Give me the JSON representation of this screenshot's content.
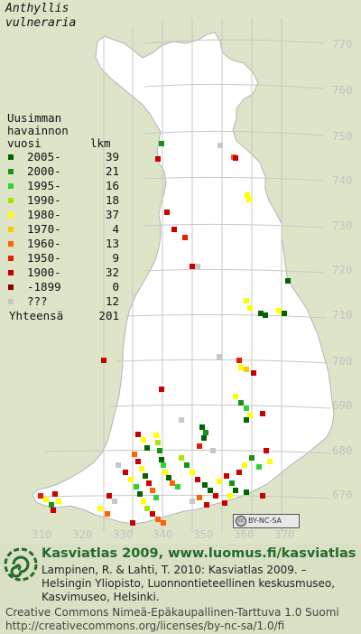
{
  "species": {
    "line1": "Anthyllis",
    "line2": "vulneraria"
  },
  "legend": {
    "header": [
      "Uusimman",
      "havainnon",
      "vuosi"
    ],
    "count_header": "lkm",
    "rows": [
      {
        "label": "2005-",
        "count": "39",
        "color": "#006400"
      },
      {
        "label": "2000-",
        "count": "21",
        "color": "#149614"
      },
      {
        "label": "1995-",
        "count": "16",
        "color": "#32d232"
      },
      {
        "label": "1990-",
        "count": "18",
        "color": "#a8e600"
      },
      {
        "label": "1980-",
        "count": "37",
        "color": "#ffff00"
      },
      {
        "label": "1970-",
        "count": "4",
        "color": "#ffc800"
      },
      {
        "label": "1960-",
        "count": "13",
        "color": "#ff6400"
      },
      {
        "label": "1950-",
        "count": "9",
        "color": "#e61e00"
      },
      {
        "label": "1900-",
        "count": "32",
        "color": "#c80000"
      },
      {
        "label": "-1899",
        "count": "0",
        "color": "#8b0000"
      },
      {
        "label": "???",
        "count": "12",
        "color": "#c8c8c8"
      }
    ],
    "total_label": "Yhteensä",
    "total_count": "201"
  },
  "axes": {
    "y_ticks": [
      "770",
      "760",
      "750",
      "740",
      "730",
      "720",
      "710",
      "700",
      "690",
      "680",
      "670"
    ],
    "x_ticks": [
      "310",
      "320",
      "330",
      "340",
      "350",
      "360",
      "370"
    ]
  },
  "license_badge": {
    "cc": "cc",
    "text": "BY-NC-SA"
  },
  "footer": {
    "brand": "Kasviatlas 2009, www.luomus.fi/kasviatlas",
    "citation_line1": "Lampinen, R. & Lahti, T. 2010: Kasviatlas 2009. –",
    "citation_line2": "Helsingin Yliopisto, Luonnontieteellinen keskusmuseo,",
    "citation_line3": "Kasvimuseo, Helsinki.",
    "license_line1": "Creative Commons Nimeä-Epäkaupallinen-Tarttuva 1.0 Suomi",
    "license_line2": "http://creativecommons.org/licenses/by-nc-sa/1.0/fi"
  },
  "colors": {
    "map_fill": "#ffffff",
    "background": "#dde4c8",
    "grid": "#c8c8c8",
    "brand": "#236b2b"
  }
}
